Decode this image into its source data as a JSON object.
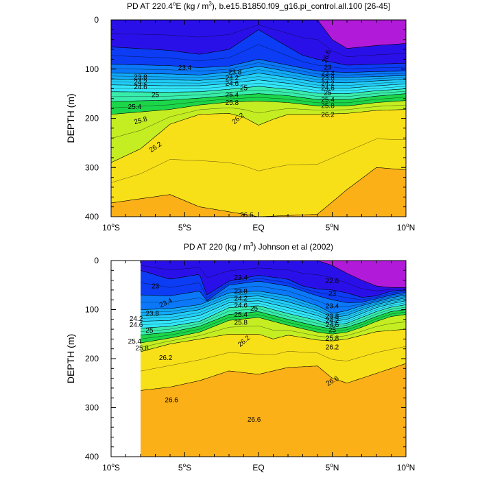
{
  "chart_data": [
    {
      "type": "filled-contour",
      "title": "PD AT 220.4°E (kg / m³), b.e15.B1850.f09_g16.pi_control.all.100 [26-45]",
      "title_parts": [
        "PD AT 220.4",
        "o",
        "E (kg / m",
        "3",
        "), b.e15.B1850.f09_g16.pi_control.all.100 [26-45]"
      ],
      "ylabel": "DEPTH (m)",
      "xlim": [
        -10,
        10
      ],
      "ylim": [
        0,
        400
      ],
      "y_inverted": true,
      "x_ticks": [
        {
          "value": -10,
          "label": "10",
          "sup": "o",
          "suffix": "S"
        },
        {
          "value": -5,
          "label": "5",
          "sup": "o",
          "suffix": "S"
        },
        {
          "value": 0,
          "label": "EQ",
          "sup": "",
          "suffix": ""
        },
        {
          "value": 5,
          "label": "5",
          "sup": "o",
          "suffix": "N"
        },
        {
          "value": 10,
          "label": "10",
          "sup": "o",
          "suffix": "N"
        }
      ],
      "y_ticks": [
        0,
        100,
        200,
        300,
        400
      ],
      "data_x_range": [
        -10,
        10
      ],
      "levels": [
        22.6,
        23,
        23.4,
        23.8,
        24.2,
        24.6,
        25,
        25.4,
        25.8,
        26.2,
        26.6
      ],
      "level_depths": [
        {
          "level": 22.6,
          "x": [
            -10,
            -6,
            -4,
            -2,
            0,
            2,
            3,
            4,
            5,
            6,
            8,
            10
          ],
          "depth": [
            0,
            0,
            0,
            0,
            0,
            0,
            0,
            0,
            40,
            58,
            52,
            48
          ]
        },
        {
          "level": 23.0,
          "x": [
            -10,
            -6,
            -4,
            -2,
            0,
            2,
            3,
            4,
            5,
            6,
            8,
            10
          ],
          "depth": [
            55,
            62,
            70,
            60,
            20,
            55,
            72,
            80,
            86,
            92,
            90,
            88
          ]
        },
        {
          "level": 23.4,
          "x": [
            -10,
            -6,
            -4,
            -2,
            0,
            2,
            4,
            6,
            8,
            10
          ],
          "depth": [
            90,
            93,
            97,
            94,
            80,
            92,
            104,
            107,
            105,
            104
          ]
        },
        {
          "level": 23.8,
          "x": [
            -10,
            -6,
            -4,
            -2,
            0,
            2,
            4,
            6,
            8,
            10
          ],
          "depth": [
            108,
            110,
            112,
            106,
            94,
            105,
            116,
            117,
            115,
            113
          ]
        },
        {
          "level": 24.2,
          "x": [
            -10,
            -6,
            -4,
            -2,
            0,
            2,
            4,
            6,
            8,
            10
          ],
          "depth": [
            120,
            122,
            123,
            118,
            108,
            117,
            127,
            128,
            124,
            121
          ]
        },
        {
          "level": 24.6,
          "x": [
            -10,
            -6,
            -4,
            -2,
            0,
            2,
            4,
            6,
            8,
            10
          ],
          "depth": [
            132,
            134,
            134,
            129,
            122,
            129,
            138,
            139,
            134,
            130
          ]
        },
        {
          "level": 25.0,
          "x": [
            -10,
            -6,
            -4,
            -2,
            0,
            2,
            4,
            6,
            8,
            10
          ],
          "depth": [
            146,
            147,
            146,
            141,
            135,
            141,
            149,
            150,
            144,
            140
          ]
        },
        {
          "level": 25.4,
          "x": [
            -10,
            -6,
            -4,
            -2,
            0,
            2,
            4,
            6,
            8,
            10
          ],
          "depth": [
            166,
            163,
            159,
            154,
            150,
            154,
            162,
            162,
            155,
            150
          ]
        },
        {
          "level": 25.8,
          "x": [
            -10,
            -6,
            -4,
            -2,
            0,
            2,
            4,
            6,
            8,
            10
          ],
          "depth": [
            192,
            182,
            173,
            167,
            165,
            168,
            175,
            175,
            168,
            164
          ]
        },
        {
          "level": 26.2,
          "x": [
            -10,
            -8,
            -6,
            -4,
            -2,
            -1,
            0,
            1,
            2,
            4,
            6,
            8,
            10
          ],
          "depth": [
            290,
            262,
            212,
            192,
            190,
            198,
            214,
            202,
            192,
            192,
            190,
            184,
            182
          ]
        },
        {
          "level": 26.6,
          "x": [
            -10,
            -6,
            -4,
            0,
            4,
            6,
            8,
            10
          ],
          "depth": [
            372,
            355,
            380,
            400,
            395,
            345,
            300,
            305
          ]
        }
      ],
      "labels": [
        {
          "text": "26.6",
          "x": 4.6,
          "y": 74,
          "angle": 70
        },
        {
          "text": "23.4",
          "x": -5.0,
          "y": 97,
          "angle": 0
        },
        {
          "text": "23",
          "x": 4.7,
          "y": 96,
          "angle": 0
        },
        {
          "text": "23.8",
          "x": -8.0,
          "y": 116,
          "angle": 0
        },
        {
          "text": "23.8",
          "x": -1.6,
          "y": 106,
          "angle": 0
        },
        {
          "text": "23.4",
          "x": 4.7,
          "y": 108,
          "angle": 0
        },
        {
          "text": "24.2",
          "x": -8.0,
          "y": 126,
          "angle": 0
        },
        {
          "text": "24.2",
          "x": -1.8,
          "y": 118,
          "angle": 0
        },
        {
          "text": "23.8",
          "x": 4.7,
          "y": 118,
          "angle": 0
        },
        {
          "text": "24.6",
          "x": -8.0,
          "y": 136,
          "angle": 0
        },
        {
          "text": "24.6",
          "x": -1.8,
          "y": 129,
          "angle": 0
        },
        {
          "text": "24.2",
          "x": 4.7,
          "y": 128,
          "angle": 0
        },
        {
          "text": "25",
          "x": -7.0,
          "y": 152,
          "angle": 0
        },
        {
          "text": "25",
          "x": -1.0,
          "y": 138,
          "angle": 0
        },
        {
          "text": "24.6",
          "x": 4.7,
          "y": 138,
          "angle": 0
        },
        {
          "text": "25.4",
          "x": -1.8,
          "y": 152,
          "angle": 0
        },
        {
          "text": "25",
          "x": 4.7,
          "y": 148,
          "angle": 0
        },
        {
          "text": "25.4",
          "x": -8.4,
          "y": 176,
          "angle": 0
        },
        {
          "text": "25.8",
          "x": -1.8,
          "y": 168,
          "angle": 0
        },
        {
          "text": "25.4",
          "x": 4.7,
          "y": 162,
          "angle": 0
        },
        {
          "text": "25.8",
          "x": -8.0,
          "y": 204,
          "angle": 15
        },
        {
          "text": "26.2",
          "x": -1.4,
          "y": 200,
          "angle": 40
        },
        {
          "text": "25.8",
          "x": 4.7,
          "y": 174,
          "angle": 0
        },
        {
          "text": "26.2",
          "x": 4.7,
          "y": 192,
          "angle": 0
        },
        {
          "text": "26.2",
          "x": -7.0,
          "y": 258,
          "angle": 35
        },
        {
          "text": "26.6",
          "x": -0.8,
          "y": 396,
          "angle": 0
        }
      ]
    },
    {
      "type": "filled-contour",
      "title": "PD AT 220 (kg / m³) Johnson et al (2002)",
      "title_parts": [
        "PD AT 220 (kg / m",
        "3",
        ") Johnson et al (2002)",
        "",
        ""
      ],
      "ylabel": "DEPTH (m)",
      "xlim": [
        -10,
        10
      ],
      "ylim": [
        0,
        400
      ],
      "y_inverted": true,
      "x_ticks": [
        {
          "value": -10,
          "label": "10",
          "sup": "o",
          "suffix": "S"
        },
        {
          "value": -5,
          "label": "5",
          "sup": "o",
          "suffix": "S"
        },
        {
          "value": 0,
          "label": "EQ",
          "sup": "",
          "suffix": ""
        },
        {
          "value": 5,
          "label": "5",
          "sup": "o",
          "suffix": "N"
        },
        {
          "value": 10,
          "label": "10",
          "sup": "o",
          "suffix": "N"
        }
      ],
      "y_ticks": [
        0,
        100,
        200,
        300,
        400
      ],
      "data_x_range": [
        -8,
        10
      ],
      "levels": [
        22.6,
        23,
        23.4,
        23.8,
        24.2,
        24.6,
        25,
        25.4,
        25.8,
        26.2,
        26.6
      ],
      "level_depths": [
        {
          "level": 22.6,
          "x": [
            -8,
            -4,
            -2,
            0,
            2,
            3,
            4,
            5,
            6,
            7,
            8,
            9,
            10
          ],
          "depth": [
            0,
            0,
            0,
            0,
            0,
            0,
            0,
            10,
            26,
            40,
            52,
            55,
            55
          ]
        },
        {
          "level": 23.0,
          "x": [
            -8,
            -6,
            -4,
            -3.5,
            -2,
            0,
            2,
            3,
            4,
            5,
            6,
            7,
            8,
            9,
            10
          ],
          "depth": [
            20,
            38,
            28,
            70,
            42,
            30,
            38,
            52,
            58,
            60,
            66,
            75,
            72,
            62,
            60
          ]
        },
        {
          "level": 23.4,
          "x": [
            -8,
            -6,
            -4,
            -3.5,
            -2,
            0,
            2,
            4,
            5,
            6,
            7,
            8,
            9,
            10
          ],
          "depth": [
            70,
            72,
            62,
            82,
            50,
            42,
            52,
            72,
            80,
            86,
            85,
            78,
            70,
            65
          ]
        },
        {
          "level": 23.8,
          "x": [
            -8,
            -6,
            -4,
            -2,
            0,
            2,
            4,
            5,
            6,
            7,
            8,
            9,
            10
          ],
          "depth": [
            100,
            98,
            90,
            66,
            62,
            72,
            92,
            108,
            102,
            92,
            84,
            76,
            70
          ]
        },
        {
          "level": 24.2,
          "x": [
            -8,
            -6,
            -4,
            -2,
            0,
            2,
            4,
            5,
            6,
            7,
            8,
            9,
            10
          ],
          "depth": [
            112,
            110,
            100,
            76,
            72,
            84,
            102,
            116,
            112,
            100,
            90,
            82,
            76
          ]
        },
        {
          "level": 24.6,
          "x": [
            -8,
            -6,
            -4,
            -2,
            0,
            2,
            4,
            5,
            6,
            7,
            8,
            9,
            10
          ],
          "depth": [
            124,
            122,
            112,
            86,
            82,
            96,
            112,
            124,
            120,
            108,
            96,
            88,
            82
          ]
        },
        {
          "level": 25.0,
          "x": [
            -8,
            -6,
            -4,
            -2,
            0,
            2,
            4,
            5,
            6,
            7,
            8,
            9,
            10
          ],
          "depth": [
            138,
            134,
            124,
            96,
            92,
            108,
            122,
            132,
            128,
            116,
            104,
            95,
            90
          ]
        },
        {
          "level": 25.4,
          "x": [
            -8,
            -6,
            -4,
            -2,
            0,
            2,
            4,
            5,
            6,
            7,
            8,
            9,
            10
          ],
          "depth": [
            152,
            146,
            134,
            110,
            104,
            120,
            134,
            140,
            136,
            126,
            114,
            104,
            100
          ]
        },
        {
          "level": 25.8,
          "x": [
            -8,
            -6,
            -4,
            -2,
            0,
            2,
            4,
            5,
            6,
            7,
            8,
            9,
            10
          ],
          "depth": [
            168,
            158,
            146,
            122,
            116,
            132,
            146,
            150,
            146,
            136,
            124,
            114,
            110
          ]
        },
        {
          "level": 26.2,
          "x": [
            -8,
            -6,
            -4,
            -2,
            0,
            1,
            2,
            4,
            5,
            6,
            8,
            10
          ],
          "depth": [
            186,
            170,
            160,
            150,
            150,
            160,
            152,
            162,
            164,
            160,
            145,
            140
          ]
        },
        {
          "level": 26.6,
          "x": [
            -8,
            -6,
            -4,
            -2,
            0,
            2,
            4,
            5,
            6,
            8,
            10
          ],
          "depth": [
            265,
            258,
            245,
            225,
            232,
            218,
            215,
            240,
            250,
            230,
            210
          ]
        }
      ],
      "labels": [
        {
          "text": "22.6",
          "x": 5.0,
          "y": 41,
          "angle": 0
        },
        {
          "text": "23.4",
          "x": -1.2,
          "y": 34,
          "angle": 0
        },
        {
          "text": "23",
          "x": -7.0,
          "y": 52,
          "angle": 0
        },
        {
          "text": "23",
          "x": 5.0,
          "y": 67,
          "angle": 0
        },
        {
          "text": "23.4",
          "x": -6.3,
          "y": 86,
          "angle": 25
        },
        {
          "text": "23.8",
          "x": -1.2,
          "y": 62,
          "angle": 0
        },
        {
          "text": "23.4",
          "x": 5.0,
          "y": 92,
          "angle": 0
        },
        {
          "text": "24.2",
          "x": -1.2,
          "y": 77,
          "angle": 0
        },
        {
          "text": "23.8",
          "x": -7.2,
          "y": 108,
          "angle": 0
        },
        {
          "text": "24.6",
          "x": -1.2,
          "y": 91,
          "angle": 0
        },
        {
          "text": "25",
          "x": -0.3,
          "y": 97,
          "angle": 0
        },
        {
          "text": "24.2",
          "x": -8.3,
          "y": 118,
          "angle": 0
        },
        {
          "text": "23.8",
          "x": 5.0,
          "y": 113,
          "angle": 0
        },
        {
          "text": "25.4",
          "x": -1.2,
          "y": 110,
          "angle": 0
        },
        {
          "text": "24.2",
          "x": 5.0,
          "y": 122,
          "angle": 0
        },
        {
          "text": "24.6",
          "x": -8.3,
          "y": 131,
          "angle": 0
        },
        {
          "text": "25",
          "x": -7.4,
          "y": 142,
          "angle": 0
        },
        {
          "text": "24.6",
          "x": 5.0,
          "y": 131,
          "angle": 0
        },
        {
          "text": "25.8",
          "x": -1.2,
          "y": 126,
          "angle": 0
        },
        {
          "text": "25",
          "x": 5.0,
          "y": 141,
          "angle": 0
        },
        {
          "text": "25.4",
          "x": -8.4,
          "y": 164,
          "angle": 0
        },
        {
          "text": "25.8",
          "x": 5.0,
          "y": 158,
          "angle": 0
        },
        {
          "text": "25.8",
          "x": -7.9,
          "y": 178,
          "angle": 0
        },
        {
          "text": "26.2",
          "x": -1.0,
          "y": 164,
          "angle": 40
        },
        {
          "text": "26.2",
          "x": 5.0,
          "y": 176,
          "angle": 0
        },
        {
          "text": "26.2",
          "x": -6.3,
          "y": 198,
          "angle": 0
        },
        {
          "text": "26.6",
          "x": 5.0,
          "y": 245,
          "angle": 30
        },
        {
          "text": "26.6",
          "x": -5.9,
          "y": 284,
          "angle": 0
        },
        {
          "text": "26.6",
          "x": -0.3,
          "y": 324,
          "angle": 0
        }
      ]
    }
  ]
}
